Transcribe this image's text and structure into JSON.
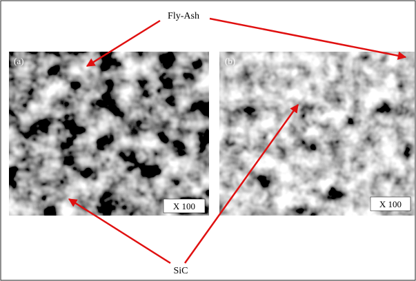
{
  "labels": {
    "fly_ash": "Fly-Ash",
    "sic": "SiC"
  },
  "panels": [
    {
      "label": "(a)",
      "magnification": "X 100"
    },
    {
      "label": "(b)",
      "magnification": "X 100"
    }
  ]
}
